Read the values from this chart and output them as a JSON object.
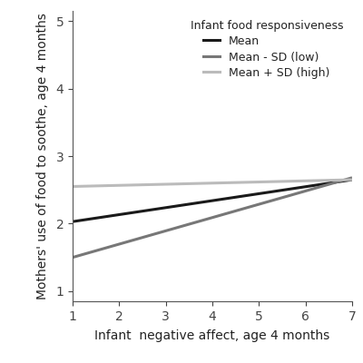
{
  "x": [
    1,
    7
  ],
  "lines": [
    {
      "label": "Mean",
      "color": "#1a1a1a",
      "linewidth": 2.2,
      "y_start": 2.03,
      "y_end": 2.65
    },
    {
      "label": "Mean - SD (low)",
      "color": "#777777",
      "linewidth": 2.2,
      "y_start": 1.5,
      "y_end": 2.68
    },
    {
      "label": "Mean + SD (high)",
      "color": "#bbbbbb",
      "linewidth": 2.2,
      "y_start": 2.55,
      "y_end": 2.65
    }
  ],
  "xlabel": "Infant  negative affect, age 4 months",
  "ylabel": "Mothers' use of food to soothe, age 4 months",
  "xlim": [
    1,
    7
  ],
  "ylim": [
    0.85,
    5.15
  ],
  "xticks": [
    1,
    2,
    3,
    4,
    5,
    6,
    7
  ],
  "yticks": [
    1,
    2,
    3,
    4,
    5
  ],
  "legend_title": "Infant food responsiveness",
  "background_color": "#ffffff",
  "spine_color": "#555555",
  "tick_label_fontsize": 10,
  "axis_label_fontsize": 10
}
